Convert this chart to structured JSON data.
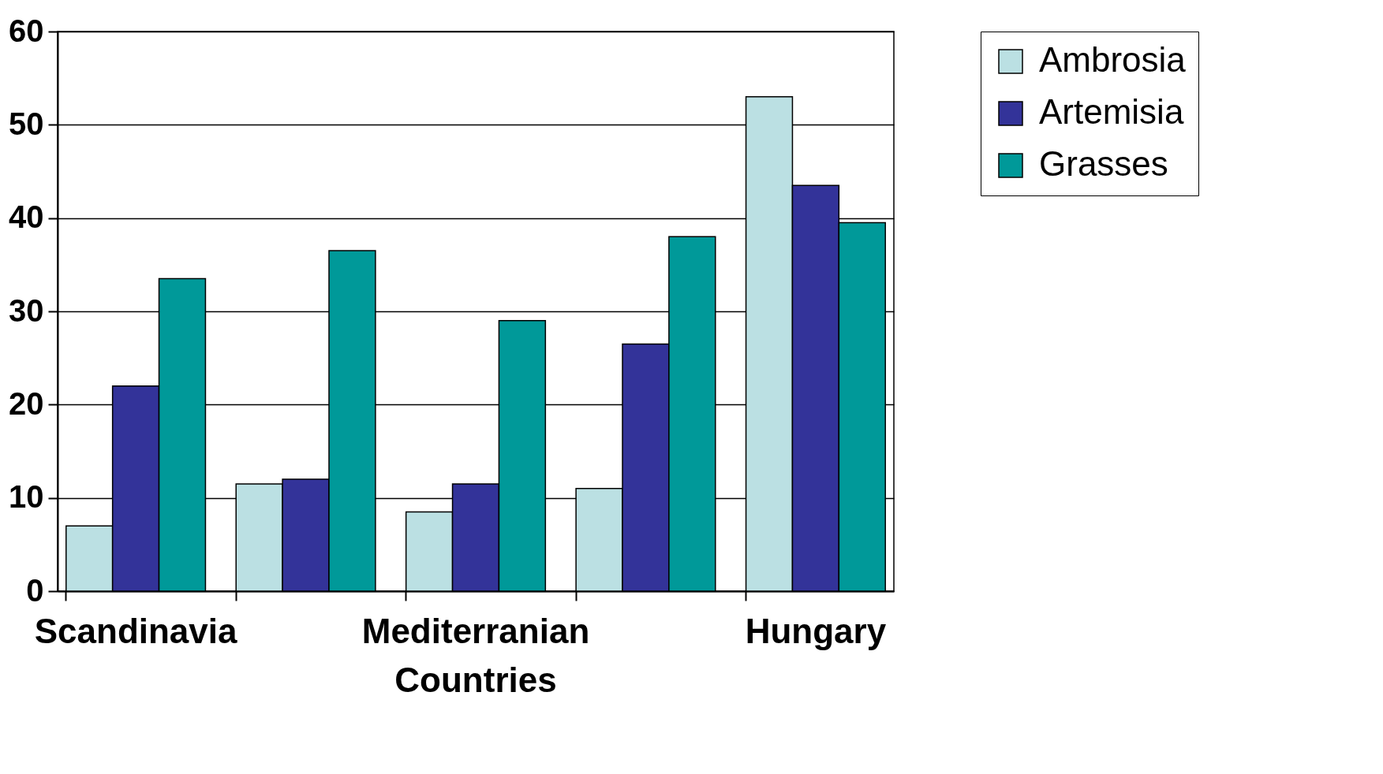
{
  "chart_data": {
    "type": "bar",
    "categories": [
      "Scandinavia",
      null,
      "Mediterranian Countries",
      null,
      "Hungary"
    ],
    "series": [
      {
        "name": "Ambrosia",
        "color": "#bbe0e3",
        "values": [
          7,
          11.5,
          8.5,
          11,
          53
        ]
      },
      {
        "name": "Artemisia",
        "color": "#333399",
        "values": [
          22,
          12,
          11.5,
          26.5,
          43.5
        ]
      },
      {
        "name": "Grasses",
        "color": "#009999",
        "values": [
          33.5,
          36.5,
          29,
          38,
          39.5
        ]
      }
    ],
    "ylim": [
      0,
      60
    ],
    "yticks": [
      0,
      10,
      20,
      30,
      40,
      50,
      60
    ],
    "grid": "y",
    "legend": "right"
  }
}
